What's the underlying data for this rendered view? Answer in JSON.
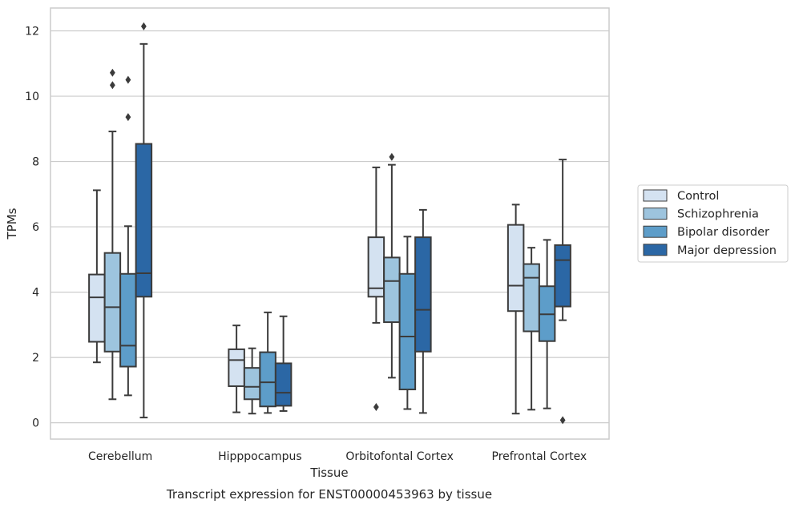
{
  "chart_data": {
    "type": "box",
    "title": "",
    "caption": "Transcript expression for ENST00000453963 by tissue",
    "xlabel": "Tissue",
    "ylabel": "TPMs",
    "ylim": [
      -0.5,
      12.7
    ],
    "yticks": [
      0,
      2,
      4,
      6,
      8,
      10,
      12
    ],
    "grid": "horizontal",
    "legend_position": "right",
    "categories": [
      "Cerebellum",
      "Hipppocampus",
      "Orbitofontal Cortex",
      "Prefrontal Cortex"
    ],
    "series": [
      {
        "name": "Control",
        "color": "#d4e2f1",
        "boxes": [
          {
            "whislo": 1.85,
            "q1": 2.48,
            "med": 3.84,
            "q3": 4.54,
            "whishi": 7.12,
            "fliers": []
          },
          {
            "whislo": 0.32,
            "q1": 1.12,
            "med": 1.92,
            "q3": 2.25,
            "whishi": 2.98,
            "fliers": []
          },
          {
            "whislo": 3.06,
            "q1": 3.86,
            "med": 4.12,
            "q3": 5.68,
            "whishi": 7.82,
            "fliers": [
              0.48
            ]
          },
          {
            "whislo": 0.28,
            "q1": 3.42,
            "med": 4.2,
            "q3": 6.06,
            "whishi": 6.68,
            "fliers": []
          }
        ]
      },
      {
        "name": "Schizophrenia",
        "color": "#9dc4de",
        "boxes": [
          {
            "whislo": 0.72,
            "q1": 2.18,
            "med": 3.54,
            "q3": 5.2,
            "whishi": 8.92,
            "fliers": [
              10.34,
              10.72
            ]
          },
          {
            "whislo": 0.28,
            "q1": 0.72,
            "med": 1.1,
            "q3": 1.68,
            "whishi": 2.28,
            "fliers": []
          },
          {
            "whislo": 1.38,
            "q1": 3.08,
            "med": 4.34,
            "q3": 5.06,
            "whishi": 7.9,
            "fliers": [
              8.14
            ]
          },
          {
            "whislo": 0.4,
            "q1": 2.8,
            "med": 4.44,
            "q3": 4.86,
            "whishi": 5.36,
            "fliers": []
          }
        ]
      },
      {
        "name": "Bipolar disorder",
        "color": "#5d9dc9",
        "boxes": [
          {
            "whislo": 0.84,
            "q1": 1.72,
            "med": 2.36,
            "q3": 4.56,
            "whishi": 6.02,
            "fliers": [
              9.36,
              10.5
            ]
          },
          {
            "whislo": 0.3,
            "q1": 0.5,
            "med": 1.24,
            "q3": 2.16,
            "whishi": 3.38,
            "fliers": []
          },
          {
            "whislo": 0.42,
            "q1": 1.02,
            "med": 2.64,
            "q3": 4.56,
            "whishi": 5.7,
            "fliers": []
          },
          {
            "whislo": 0.44,
            "q1": 2.5,
            "med": 3.32,
            "q3": 4.18,
            "whishi": 5.6,
            "fliers": []
          }
        ]
      },
      {
        "name": "Major depression",
        "color": "#2b67a5",
        "boxes": [
          {
            "whislo": 0.16,
            "q1": 3.86,
            "med": 4.58,
            "q3": 8.54,
            "whishi": 11.6,
            "fliers": [
              12.14
            ]
          },
          {
            "whislo": 0.36,
            "q1": 0.52,
            "med": 0.92,
            "q3": 1.82,
            "whishi": 3.26,
            "fliers": []
          },
          {
            "whislo": 0.3,
            "q1": 2.18,
            "med": 3.46,
            "q3": 5.68,
            "whishi": 6.52,
            "fliers": []
          },
          {
            "whislo": 3.14,
            "q1": 3.56,
            "med": 4.98,
            "q3": 5.44,
            "whishi": 8.06,
            "fliers": [
              0.08
            ]
          }
        ]
      }
    ]
  }
}
